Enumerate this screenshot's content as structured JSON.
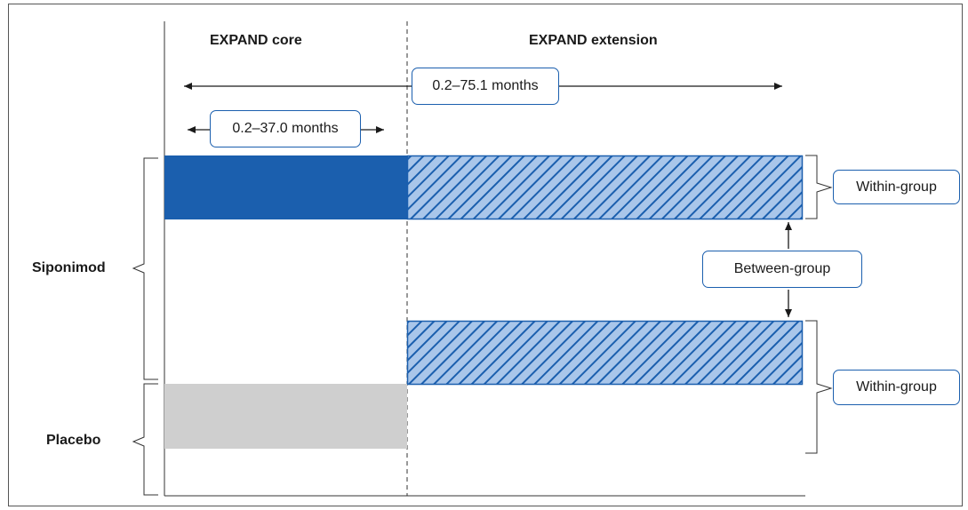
{
  "header": {
    "core_label": "EXPAND core",
    "extension_label": "EXPAND extension"
  },
  "durations": {
    "overall": "0.2–75.1 months",
    "core": "0.2–37.0 months"
  },
  "groups": {
    "siponimod": "Siponimod",
    "placebo": "Placebo"
  },
  "comparisons": {
    "within_top": "Within-group",
    "between": "Between-group",
    "within_bottom": "Within-group"
  },
  "colors": {
    "siponimod_core": "#1b5fae",
    "extension_hatch_fill": "#a9c6ea",
    "extension_hatch_stroke": "#1b5fae",
    "placebo_core": "#cfcfcf",
    "callout_border": "#1b5fae",
    "frame": "#555555"
  }
}
